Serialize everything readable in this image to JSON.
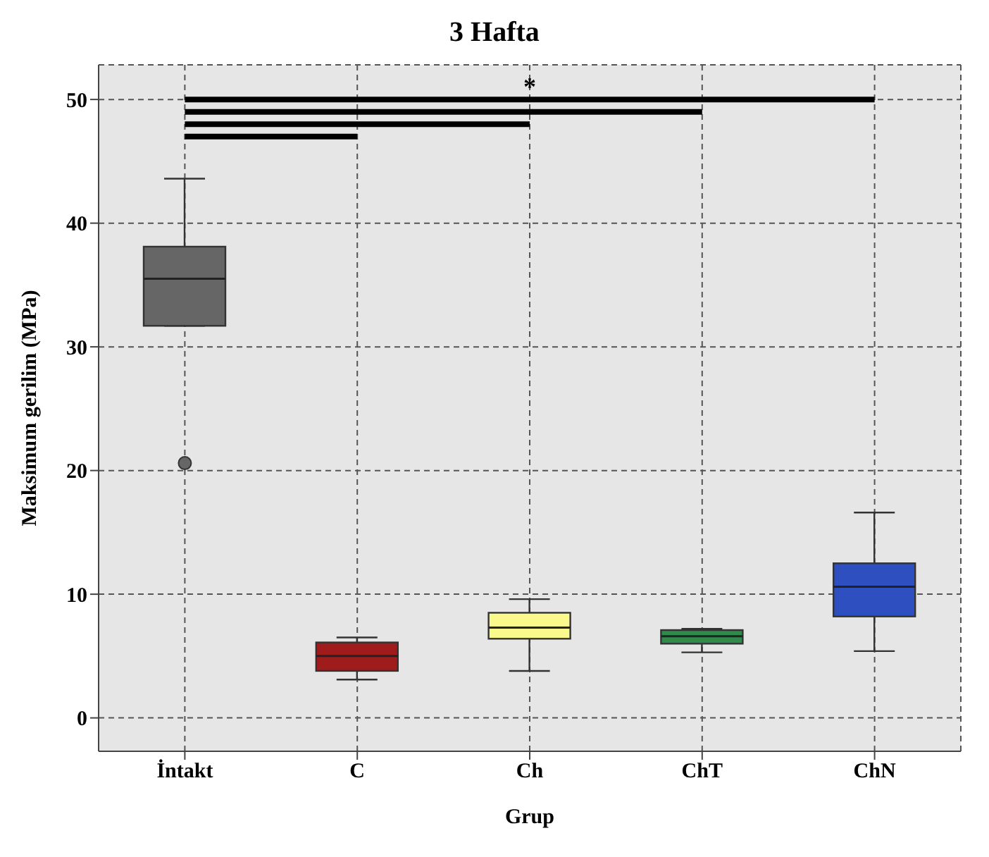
{
  "chart_data": {
    "type": "box",
    "title": "3 Hafta",
    "xlabel": "Grup",
    "ylabel": "Maksimum gerilim (MPa)",
    "categories": [
      "İntakt",
      "C",
      "Ch",
      "ChT",
      "ChN"
    ],
    "boxes": [
      {
        "low": 31.7,
        "q1": 31.7,
        "median": 35.5,
        "q3": 38.1,
        "high": 43.6,
        "outliers": [
          20.6
        ]
      },
      {
        "low": 3.1,
        "q1": 3.8,
        "median": 5.0,
        "q3": 6.1,
        "high": 6.5
      },
      {
        "low": 3.8,
        "q1": 6.4,
        "median": 7.3,
        "q3": 8.5,
        "high": 9.6
      },
      {
        "low": 5.3,
        "q1": 6.0,
        "median": 6.6,
        "q3": 7.1,
        "high": 7.2
      },
      {
        "low": 5.4,
        "q1": 8.2,
        "median": 10.6,
        "q3": 12.5,
        "high": 16.6
      }
    ],
    "colors": [
      "#666666",
      "#a01c1c",
      "#fafa8c",
      "#2e8b4a",
      "#2e4fc0"
    ],
    "ylim": [
      -2.7,
      52.8
    ],
    "yticks": [
      0,
      10,
      20,
      30,
      40,
      50
    ],
    "grid": true,
    "annotations": [
      "*"
    ]
  }
}
